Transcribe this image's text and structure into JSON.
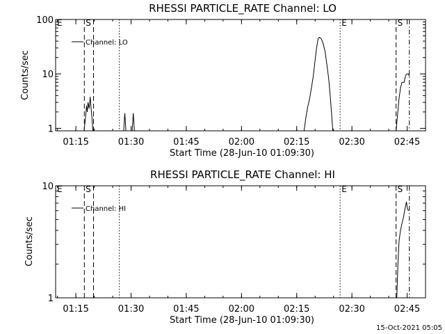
{
  "footer_timestamp": "15-Oct-2021 05:05",
  "chart_data": [
    {
      "type": "line",
      "title": "RHESSI PARTICLE_RATE Channel: LO",
      "xlabel": "Start Time (28-Jun-10 01:09:30)",
      "ylabel": "Counts/sec",
      "yscale": "log",
      "ylim": [
        0.9,
        100
      ],
      "xlim_minutes": [
        69.5,
        170
      ],
      "x_tick_labels": [
        "01:15",
        "01:30",
        "01:45",
        "02:00",
        "02:15",
        "02:30",
        "02:45"
      ],
      "x_tick_minutes": [
        75,
        90,
        105,
        120,
        135,
        150,
        165
      ],
      "y_tick_labels": [
        "1",
        "10",
        "100"
      ],
      "y_tick_values": [
        1,
        10,
        100
      ],
      "legend": {
        "label": "Channel: LO",
        "placement": "top-left"
      },
      "markers": [
        {
          "label": "E",
          "minute": 69.5,
          "style": "solid"
        },
        {
          "label": "S",
          "minute": 77.3,
          "style": "dashed"
        },
        {
          "label": "",
          "minute": 79.8,
          "style": "dashed"
        },
        {
          "label": "",
          "minute": 86.8,
          "style": "dotted"
        },
        {
          "label": "E",
          "minute": 146.8,
          "style": "dotted"
        },
        {
          "label": "S",
          "minute": 162.0,
          "style": "dashed"
        },
        {
          "label": "",
          "minute": 165.6,
          "style": "dashdot"
        }
      ],
      "series": [
        {
          "segments": [
            [
              [
                77.2,
                0.9
              ],
              [
                77.6,
                1.5
              ],
              [
                77.9,
                2.6
              ],
              [
                78.1,
                2.0
              ],
              [
                78.3,
                3.0
              ],
              [
                78.6,
                2.3
              ],
              [
                78.9,
                3.8
              ],
              [
                79.1,
                2.5
              ],
              [
                79.4,
                1.5
              ],
              [
                79.6,
                0.9
              ]
            ],
            [
              [
                88.0,
                0.9
              ],
              [
                88.3,
                1.9
              ],
              [
                88.6,
                0.9
              ]
            ],
            [
              [
                90.3,
                0.9
              ],
              [
                90.6,
                1.9
              ],
              [
                90.9,
                0.9
              ]
            ],
            [
              [
                137.0,
                0.9
              ],
              [
                137.5,
                1.6
              ],
              [
                138.0,
                2.5
              ],
              [
                138.5,
                3.5
              ],
              [
                139.0,
                5.5
              ],
              [
                139.5,
                9.0
              ],
              [
                140.0,
                18
              ],
              [
                140.4,
                30
              ],
              [
                140.8,
                44
              ],
              [
                141.2,
                47
              ],
              [
                141.7,
                44
              ],
              [
                142.2,
                36
              ],
              [
                142.7,
                26
              ],
              [
                143.2,
                15
              ],
              [
                143.7,
                8
              ],
              [
                144.1,
                4
              ],
              [
                144.5,
                1.8
              ],
              [
                144.8,
                0.9
              ]
            ],
            [
              [
                162.0,
                0.9
              ],
              [
                162.4,
                1.8
              ],
              [
                162.8,
                3.5
              ],
              [
                163.2,
                5.5
              ],
              [
                163.6,
                7.0
              ],
              [
                164.2,
                7.0
              ],
              [
                164.6,
                9.5
              ],
              [
                165.0,
                10.0
              ],
              [
                165.4,
                10.0
              ],
              [
                165.6,
                9.0
              ]
            ]
          ]
        }
      ]
    },
    {
      "type": "line",
      "title": "RHESSI PARTICLE_RATE Channel: HI",
      "xlabel": "Start Time (28-Jun-10 01:09:30)",
      "ylabel": "Counts/sec",
      "yscale": "log",
      "ylim": [
        1,
        10
      ],
      "xlim_minutes": [
        69.5,
        170
      ],
      "x_tick_labels": [
        "01:15",
        "01:30",
        "01:45",
        "02:00",
        "02:15",
        "02:30",
        "02:45"
      ],
      "x_tick_minutes": [
        75,
        90,
        105,
        120,
        135,
        150,
        165
      ],
      "y_tick_labels": [
        "1",
        "10"
      ],
      "y_tick_values": [
        1,
        10
      ],
      "legend": {
        "label": "Channel: HI",
        "placement": "top-left"
      },
      "markers": [
        {
          "label": "E",
          "minute": 69.5,
          "style": "solid"
        },
        {
          "label": "S",
          "minute": 77.3,
          "style": "dashed"
        },
        {
          "label": "",
          "minute": 79.8,
          "style": "dashed"
        },
        {
          "label": "",
          "minute": 86.8,
          "style": "dotted"
        },
        {
          "label": "E",
          "minute": 146.8,
          "style": "dotted"
        },
        {
          "label": "S",
          "minute": 162.0,
          "style": "dashed"
        },
        {
          "label": "",
          "minute": 165.6,
          "style": "dashdot"
        }
      ],
      "series": [
        {
          "segments": [
            [
              [
                162.2,
                1.0
              ],
              [
                162.5,
                2.0
              ],
              [
                162.8,
                3.2
              ],
              [
                163.2,
                4.0
              ],
              [
                163.6,
                4.6
              ],
              [
                164.0,
                5.2
              ],
              [
                164.4,
                6.2
              ],
              [
                164.8,
                7.2
              ],
              [
                165.1,
                6.2
              ],
              [
                165.4,
                6.0
              ]
            ]
          ]
        }
      ]
    }
  ]
}
